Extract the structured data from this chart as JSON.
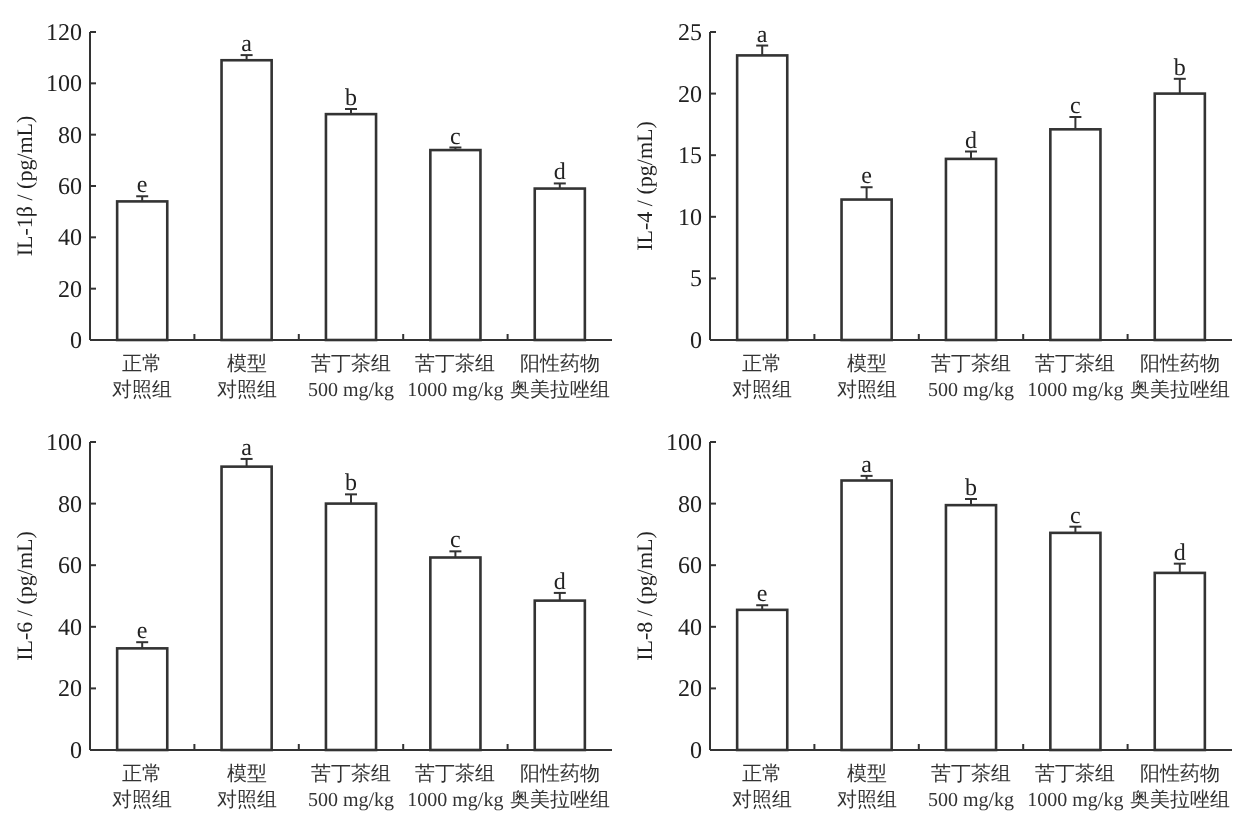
{
  "chart_data": [
    {
      "type": "bar",
      "ylabel": "IL-1β / (pg/mL)",
      "categories": [
        "正常对照组",
        "模型对照组",
        "苦丁茶组 500 mg/kg",
        "苦丁茶组 1000 mg/kg",
        "阳性药物奥美拉唑组"
      ],
      "values": [
        54,
        109,
        88,
        74,
        59
      ],
      "errors": [
        2,
        2,
        2,
        1,
        2
      ],
      "color": "#ffffff",
      "ylim": [
        0,
        120
      ],
      "yticks": [
        0,
        20,
        40,
        60,
        80,
        100,
        120
      ],
      "annotations": [
        {
          "text": "e",
          "x": "正常对照组",
          "y": 56
        },
        {
          "text": "a",
          "x": "模型对照组",
          "y": 111
        },
        {
          "text": "b",
          "x": "苦丁茶组 500 mg/kg",
          "y": 90
        },
        {
          "text": "c",
          "x": "苦丁茶组 1000 mg/kg",
          "y": 75
        },
        {
          "text": "d",
          "x": "阳性药物奥美拉唑组",
          "y": 61
        }
      ]
    },
    {
      "type": "bar",
      "ylabel": "IL-4 / (pg/mL)",
      "categories": [
        "正常对照组",
        "模型对照组",
        "苦丁茶组 500 mg/kg",
        "苦丁茶组 1000 mg/kg",
        "阳性药物奥美拉唑组"
      ],
      "values": [
        23.1,
        11.4,
        14.7,
        17.1,
        20
      ],
      "errors": [
        0.8,
        1,
        0.6,
        1,
        1.2
      ],
      "color": "#ffffff",
      "ylim": [
        0,
        25
      ],
      "yticks": [
        0,
        5,
        10,
        15,
        20,
        25
      ],
      "annotations": [
        {
          "text": "a",
          "x": "正常对照组",
          "y": 23.9
        },
        {
          "text": "e",
          "x": "模型对照组",
          "y": 12.4
        },
        {
          "text": "d",
          "x": "苦丁茶组 500 mg/kg",
          "y": 15.3
        },
        {
          "text": "c",
          "x": "苦丁茶组 1000 mg/kg",
          "y": 18.1
        },
        {
          "text": "b",
          "x": "阳性药物奥美拉唑组",
          "y": 21.2
        }
      ]
    },
    {
      "type": "bar",
      "ylabel": "IL-6 / (pg/mL)",
      "categories": [
        "正常对照组",
        "模型对照组",
        "苦丁茶组 500 mg/kg",
        "苦丁茶组 1000 mg/kg",
        "阳性药物奥美拉唑组"
      ],
      "values": [
        33,
        92,
        80,
        62.5,
        48.5
      ],
      "errors": [
        2,
        2.5,
        3,
        2,
        2.5
      ],
      "color": "#ffffff",
      "ylim": [
        0,
        100
      ],
      "yticks": [
        0,
        20,
        40,
        60,
        80,
        100
      ],
      "annotations": [
        {
          "text": "e",
          "x": "正常对照组",
          "y": 35
        },
        {
          "text": "a",
          "x": "模型对照组",
          "y": 94.5
        },
        {
          "text": "b",
          "x": "苦丁茶组 500 mg/kg",
          "y": 83
        },
        {
          "text": "c",
          "x": "苦丁茶组 1000 mg/kg",
          "y": 64.5
        },
        {
          "text": "d",
          "x": "阳性药物奥美拉唑组",
          "y": 51
        }
      ]
    },
    {
      "type": "bar",
      "ylabel": "IL-8 / (pg/mL)",
      "categories": [
        "正常对照组",
        "模型对照组",
        "苦丁茶组 500 mg/kg",
        "苦丁茶组 1000 mg/kg",
        "阳性药物奥美拉唑组"
      ],
      "values": [
        45.5,
        87.5,
        79.5,
        70.5,
        57.5
      ],
      "errors": [
        1.5,
        1.5,
        2,
        2,
        3
      ],
      "color": "#ffffff",
      "ylim": [
        0,
        100
      ],
      "yticks": [
        0,
        20,
        40,
        60,
        80,
        100
      ],
      "annotations": [
        {
          "text": "e",
          "x": "正常对照组",
          "y": 47
        },
        {
          "text": "a",
          "x": "模型对照组",
          "y": 89
        },
        {
          "text": "b",
          "x": "苦丁茶组 500 mg/kg",
          "y": 81.5
        },
        {
          "text": "c",
          "x": "苦丁茶组 1000 mg/kg",
          "y": 72.5
        },
        {
          "text": "d",
          "x": "阳性药物奥美拉唑组",
          "y": 60.5
        }
      ]
    }
  ]
}
